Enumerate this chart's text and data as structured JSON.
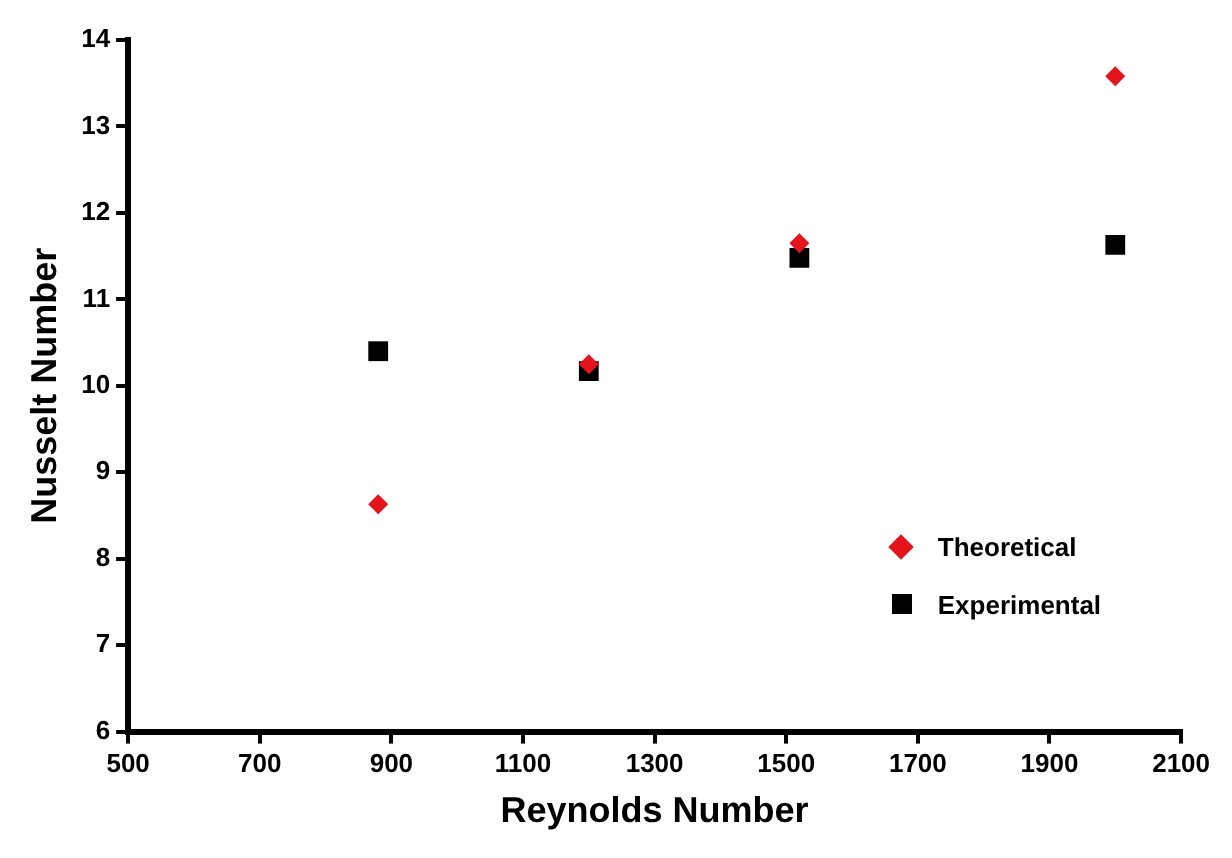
{
  "chart_data": {
    "type": "scatter",
    "xlabel": "Reynolds Number",
    "ylabel": "Nusselt Number",
    "xlim": [
      500,
      2100
    ],
    "xticks": [
      500,
      700,
      900,
      1100,
      1300,
      1500,
      1700,
      1900,
      2100
    ],
    "ylim": [
      6,
      14
    ],
    "yticks": [
      6,
      7,
      8,
      9,
      10,
      11,
      12,
      13,
      14
    ],
    "x": [
      880,
      1200,
      1520,
      2000
    ],
    "series": [
      {
        "name": "Theoretical",
        "color": "#e3141b",
        "marker": "diamond",
        "values": [
          8.63,
          10.25,
          11.65,
          13.58
        ]
      },
      {
        "name": "Experimental",
        "color": "#000000",
        "marker": "square",
        "values": [
          10.4,
          10.17,
          11.48,
          11.63
        ]
      }
    ],
    "grid": false,
    "legend": "bottom right"
  }
}
